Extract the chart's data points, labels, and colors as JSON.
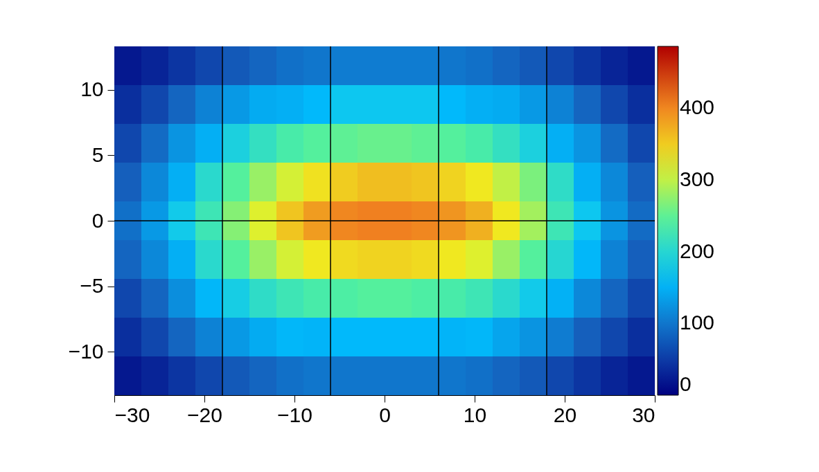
{
  "chart_data": {
    "type": "heatmap",
    "x": [
      -28.5,
      -25.5,
      -22.5,
      -19.5,
      -16.5,
      -13.5,
      -10.5,
      -7.5,
      -4.5,
      -1.5,
      1.5,
      4.5,
      7.5,
      10.5,
      13.5,
      16.5,
      19.5,
      22.5,
      25.5,
      28.5
    ],
    "y": [
      11.82,
      8.87,
      5.91,
      2.96,
      0,
      -2.96,
      -5.91,
      -8.87,
      -11.82
    ],
    "cells": [
      [
        20,
        30,
        45,
        60,
        75,
        85,
        95,
        100,
        105,
        105,
        105,
        105,
        100,
        95,
        85,
        75,
        60,
        45,
        30,
        20
      ],
      [
        40,
        60,
        85,
        110,
        130,
        145,
        148,
        157,
        175,
        175,
        175,
        175,
        157,
        148,
        145,
        130,
        110,
        85,
        60,
        40
      ],
      [
        60,
        90,
        125,
        148,
        190,
        215,
        235,
        245,
        250,
        255,
        255,
        250,
        245,
        235,
        215,
        190,
        148,
        125,
        90,
        60
      ],
      [
        80,
        115,
        148,
        205,
        245,
        280,
        310,
        335,
        350,
        360,
        360,
        355,
        345,
        330,
        300,
        265,
        210,
        148,
        115,
        80
      ],
      [
        95,
        130,
        180,
        225,
        270,
        315,
        355,
        385,
        400,
        405,
        405,
        400,
        390,
        370,
        330,
        285,
        225,
        175,
        125,
        90
      ],
      [
        85,
        115,
        148,
        205,
        245,
        280,
        310,
        330,
        340,
        345,
        345,
        340,
        330,
        315,
        280,
        245,
        200,
        155,
        110,
        80
      ],
      [
        60,
        85,
        120,
        155,
        185,
        210,
        225,
        235,
        240,
        245,
        245,
        240,
        235,
        225,
        205,
        180,
        150,
        115,
        85,
        60
      ],
      [
        40,
        60,
        85,
        110,
        130,
        145,
        155,
        153,
        157,
        157,
        157,
        157,
        153,
        155,
        140,
        125,
        105,
        80,
        60,
        40
      ],
      [
        20,
        30,
        45,
        60,
        75,
        85,
        95,
        100,
        100,
        100,
        100,
        100,
        100,
        95,
        85,
        75,
        60,
        45,
        30,
        20
      ]
    ],
    "colors": [
      "#000080",
      "#1560bd",
      "#00bfff",
      "#50f0a0",
      "#f0f020",
      "#f08020",
      "#b00000"
    ],
    "xlim": [
      -30,
      30
    ],
    "xticks": [
      {
        "value": -30,
        "label": "−30"
      },
      {
        "value": -20,
        "label": "−20"
      },
      {
        "value": -10,
        "label": "−10"
      },
      0,
      10,
      20,
      30
    ],
    "ylim": [
      -13.3,
      13.3
    ],
    "yticks": [
      {
        "value": -10,
        "label": "−10"
      },
      {
        "value": -5,
        "label": "−5"
      },
      0,
      5,
      10
    ],
    "clim": [
      0,
      486
    ],
    "cticks": [
      0,
      100,
      200,
      300,
      400
    ],
    "ref_lines": [
      {
        "axis": "x",
        "value": -18
      },
      {
        "axis": "x",
        "value": -6
      },
      {
        "axis": "x",
        "value": 6
      },
      {
        "axis": "x",
        "value": 18
      },
      {
        "axis": "y",
        "value": 0
      }
    ]
  }
}
